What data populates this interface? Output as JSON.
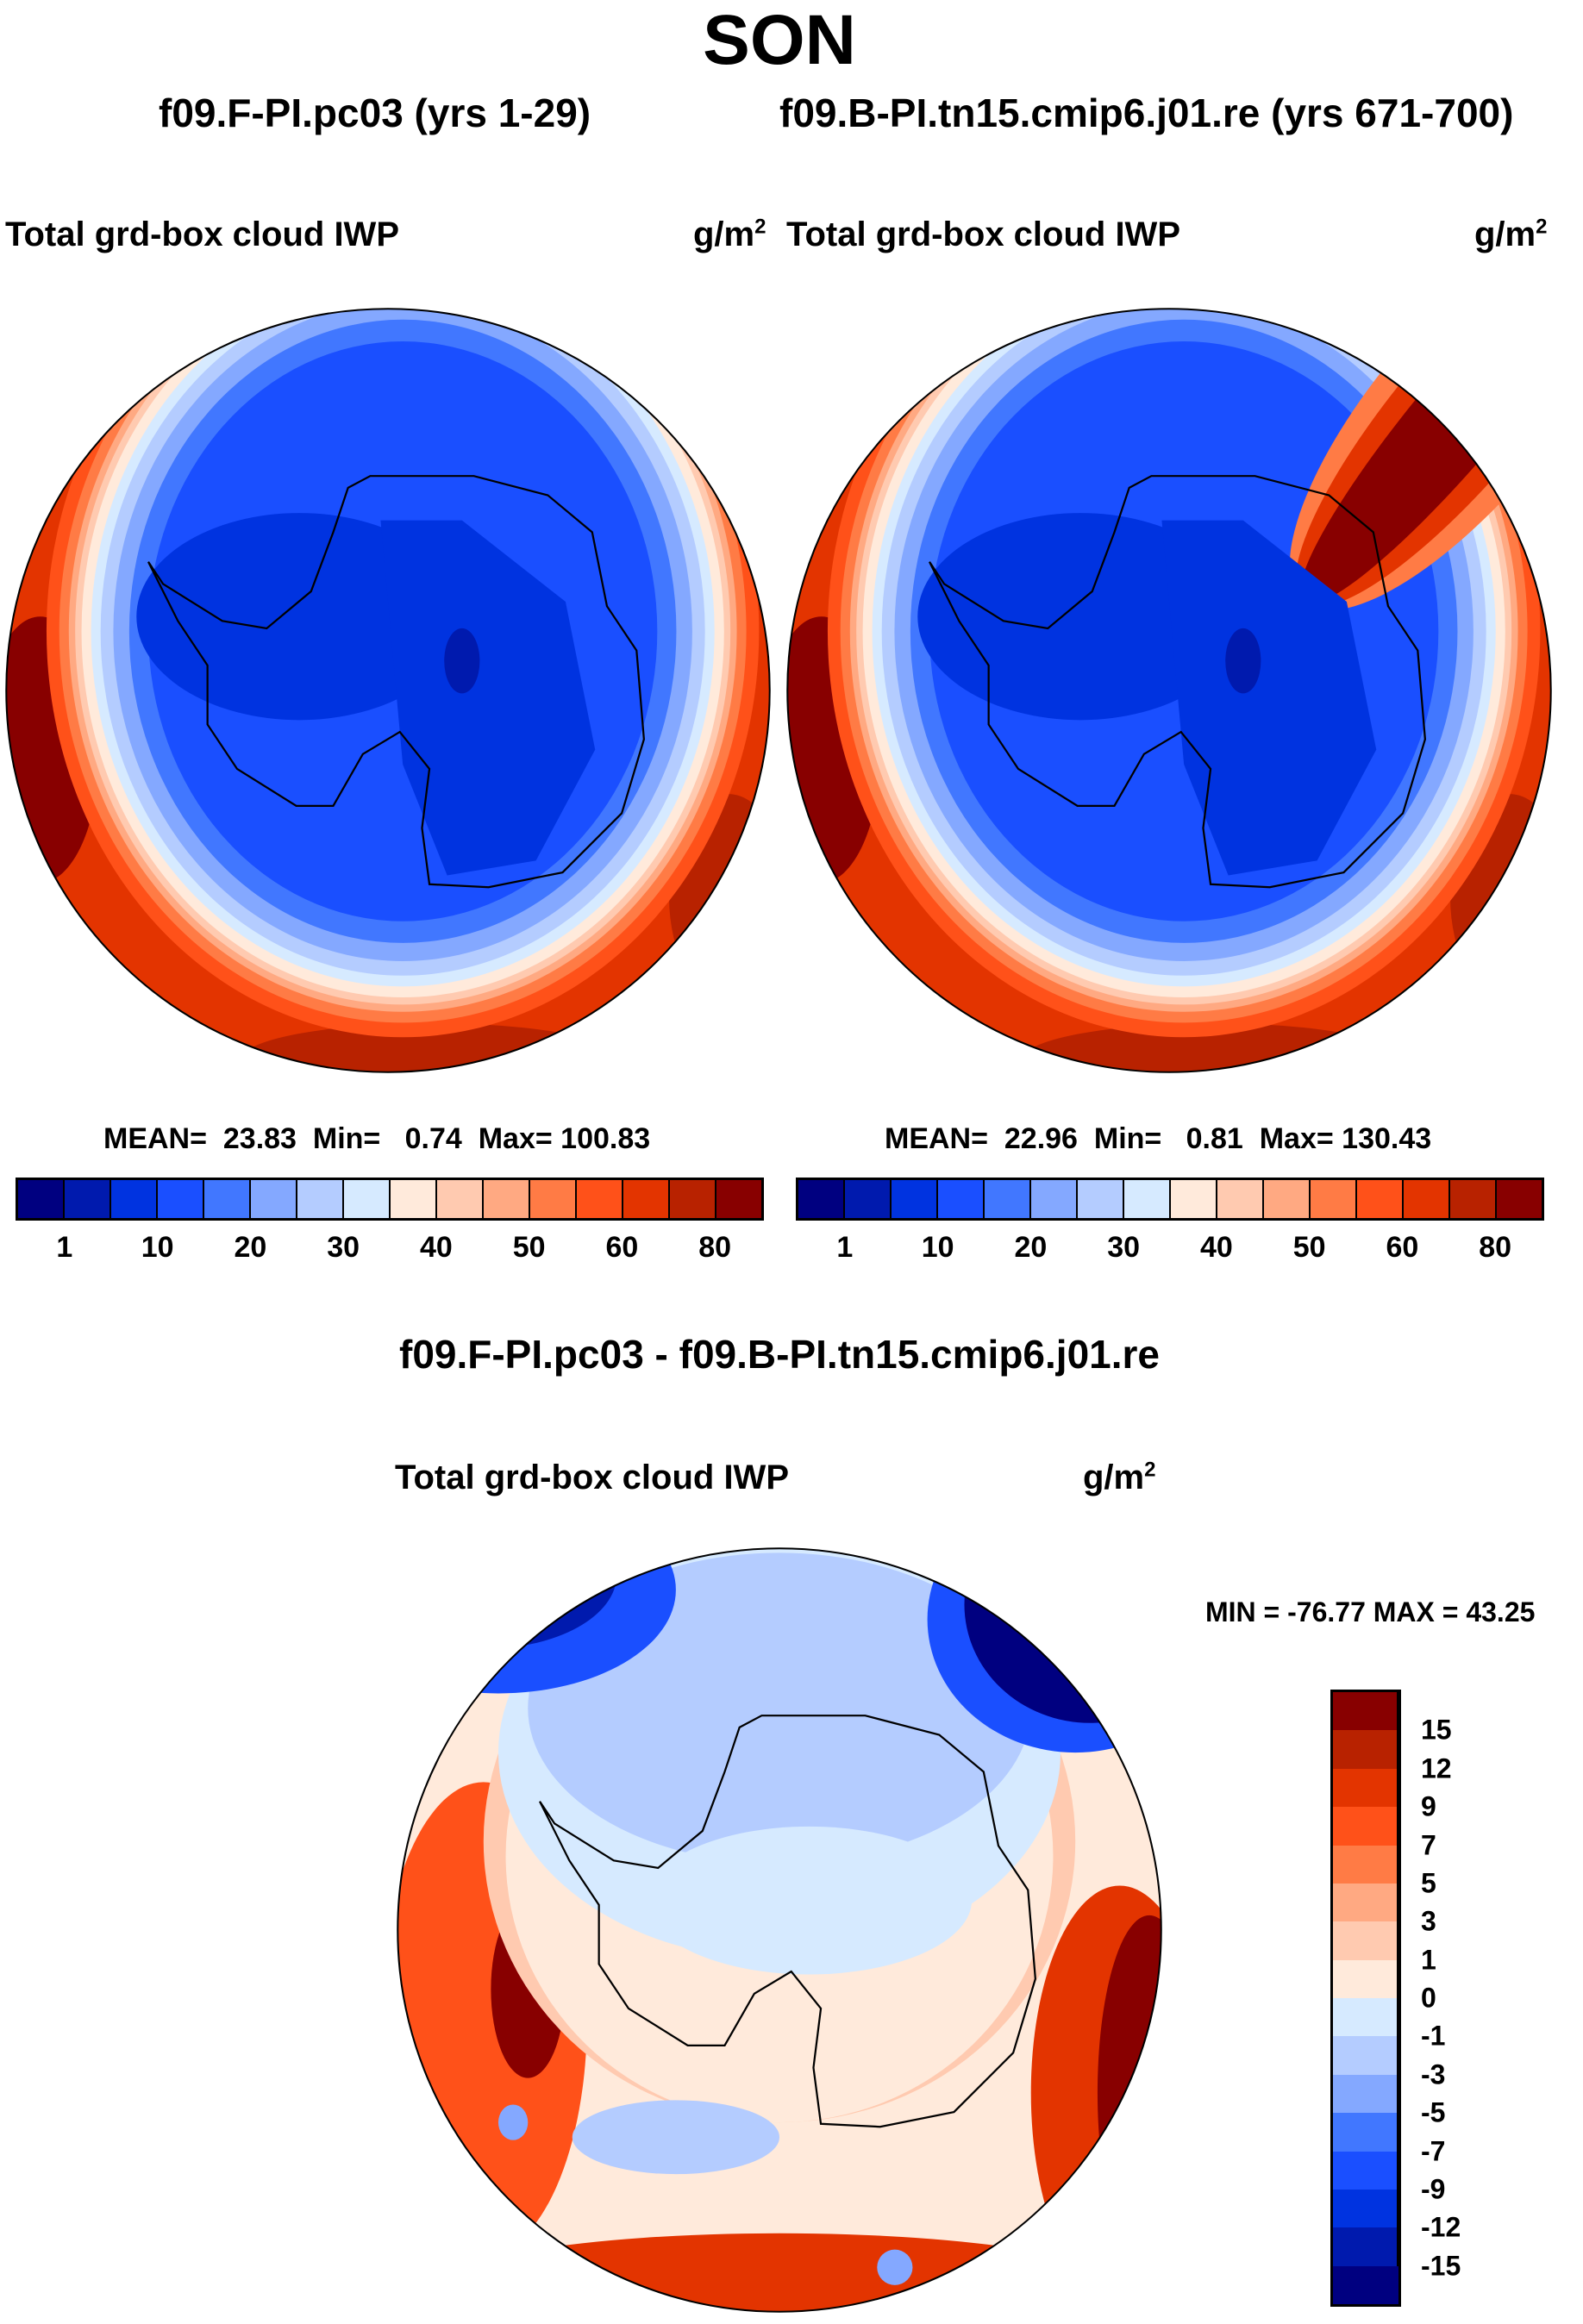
{
  "title": "SON",
  "panels": [
    {
      "case_title": "f09.F-PI.pc03 (yrs 1-29)",
      "variable": "Total grd-box cloud IWP",
      "units": "g/m",
      "units_exp": "2",
      "stats": {
        "mean_label": "MEAN=",
        "mean": "23.83",
        "min_label": "Min=",
        "min": "0.74",
        "max_label": "Max=",
        "max": "100.83"
      }
    },
    {
      "case_title": "f09.B-PI.tn15.cmip6.j01.re (yrs 671-700)",
      "variable": "Total grd-box cloud IWP",
      "units": "g/m",
      "units_exp": "2",
      "stats": {
        "mean_label": "MEAN=",
        "mean": "22.96",
        "min_label": "Min=",
        "min": "0.81",
        "max_label": "Max=",
        "max": "130.43"
      }
    }
  ],
  "diff": {
    "title": "f09.F-PI.pc03 - f09.B-PI.tn15.cmip6.j01.re",
    "variable": "Total grd-box cloud IWP",
    "units": "g/m",
    "units_exp": "2",
    "minmax": "MIN = -76.77 MAX =  43.25"
  },
  "chart_data": [
    {
      "type": "heatmap",
      "projection": "south polar stereographic",
      "title": "f09.F-PI.pc03 (yrs 1-29)",
      "variable": "Total grd-box cloud IWP",
      "units": "g/m2",
      "mean": 23.83,
      "min": 0.74,
      "max": 100.83,
      "colorbar_labels": [
        "1",
        "10",
        "20",
        "30",
        "40",
        "50",
        "60",
        "80"
      ]
    },
    {
      "type": "heatmap",
      "projection": "south polar stereographic",
      "title": "f09.B-PI.tn15.cmip6.j01.re (yrs 671-700)",
      "variable": "Total grd-box cloud IWP",
      "units": "g/m2",
      "mean": 22.96,
      "min": 0.81,
      "max": 130.43,
      "colorbar_labels": [
        "1",
        "10",
        "20",
        "30",
        "40",
        "50",
        "60",
        "80"
      ]
    },
    {
      "type": "heatmap",
      "projection": "south polar stereographic",
      "title": "f09.F-PI.pc03 - f09.B-PI.tn15.cmip6.j01.re",
      "variable": "Total grd-box cloud IWP",
      "units": "g/m2",
      "min": -76.77,
      "max": 43.25,
      "colorbar_labels": [
        "15",
        "12",
        "9",
        "7",
        "5",
        "3",
        "1",
        "0",
        "-1",
        "-3",
        "-5",
        "-7",
        "-9",
        "-12",
        "-15"
      ]
    }
  ],
  "colors": [
    "#000080",
    "#001aae",
    "#0033e0",
    "#1a4fff",
    "#4177ff",
    "#84a8ff",
    "#b4ccff",
    "#d6eaff",
    "#ffeadb",
    "#ffcab0",
    "#ffa982",
    "#ff7b45",
    "#ff5119",
    "#e33400",
    "#b82200",
    "#880000"
  ]
}
